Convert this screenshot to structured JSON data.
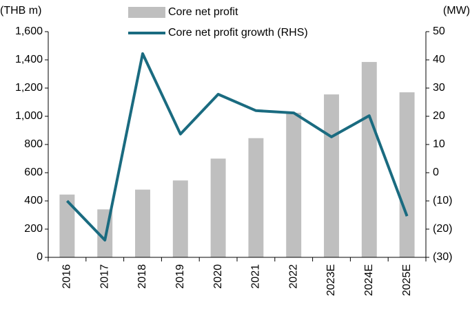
{
  "chart_data": {
    "type": "bar_line",
    "y_label": "(THB m)",
    "y2_label": "(MW)",
    "categories": [
      "2016",
      "2017",
      "2018",
      "2019",
      "2020",
      "2021",
      "2022",
      "2023E",
      "2024E",
      "2025E"
    ],
    "series": [
      {
        "name": "Core net profit",
        "type": "bar",
        "color": "#bfbfbf",
        "values": [
          445,
          340,
          480,
          545,
          700,
          845,
          1025,
          1155,
          1385,
          1170
        ]
      },
      {
        "name": "Core net profit growth (RHS)",
        "type": "line",
        "axis": "y2",
        "color": "#1a6b80",
        "values": [
          -10,
          -23.9,
          42.2,
          13.7,
          27.8,
          22,
          21.2,
          12.7,
          20.2,
          -15.4
        ]
      }
    ],
    "ylim": [
      0,
      1600
    ],
    "yticks": [
      0,
      200,
      400,
      600,
      800,
      {
        "value": 1000,
        "label": "1,000"
      },
      {
        "value": 1200,
        "label": "1,200"
      },
      {
        "value": 1400,
        "label": "1,400"
      },
      {
        "value": 1600,
        "label": "1,600"
      }
    ],
    "y2lim": [
      -30,
      50
    ],
    "y2ticks": [
      {
        "value": -30,
        "label": "(30)"
      },
      {
        "value": -20,
        "label": "(20)"
      },
      {
        "value": -10,
        "label": "(10)"
      },
      0,
      10,
      20,
      30,
      40,
      50
    ],
    "legend": "top"
  }
}
